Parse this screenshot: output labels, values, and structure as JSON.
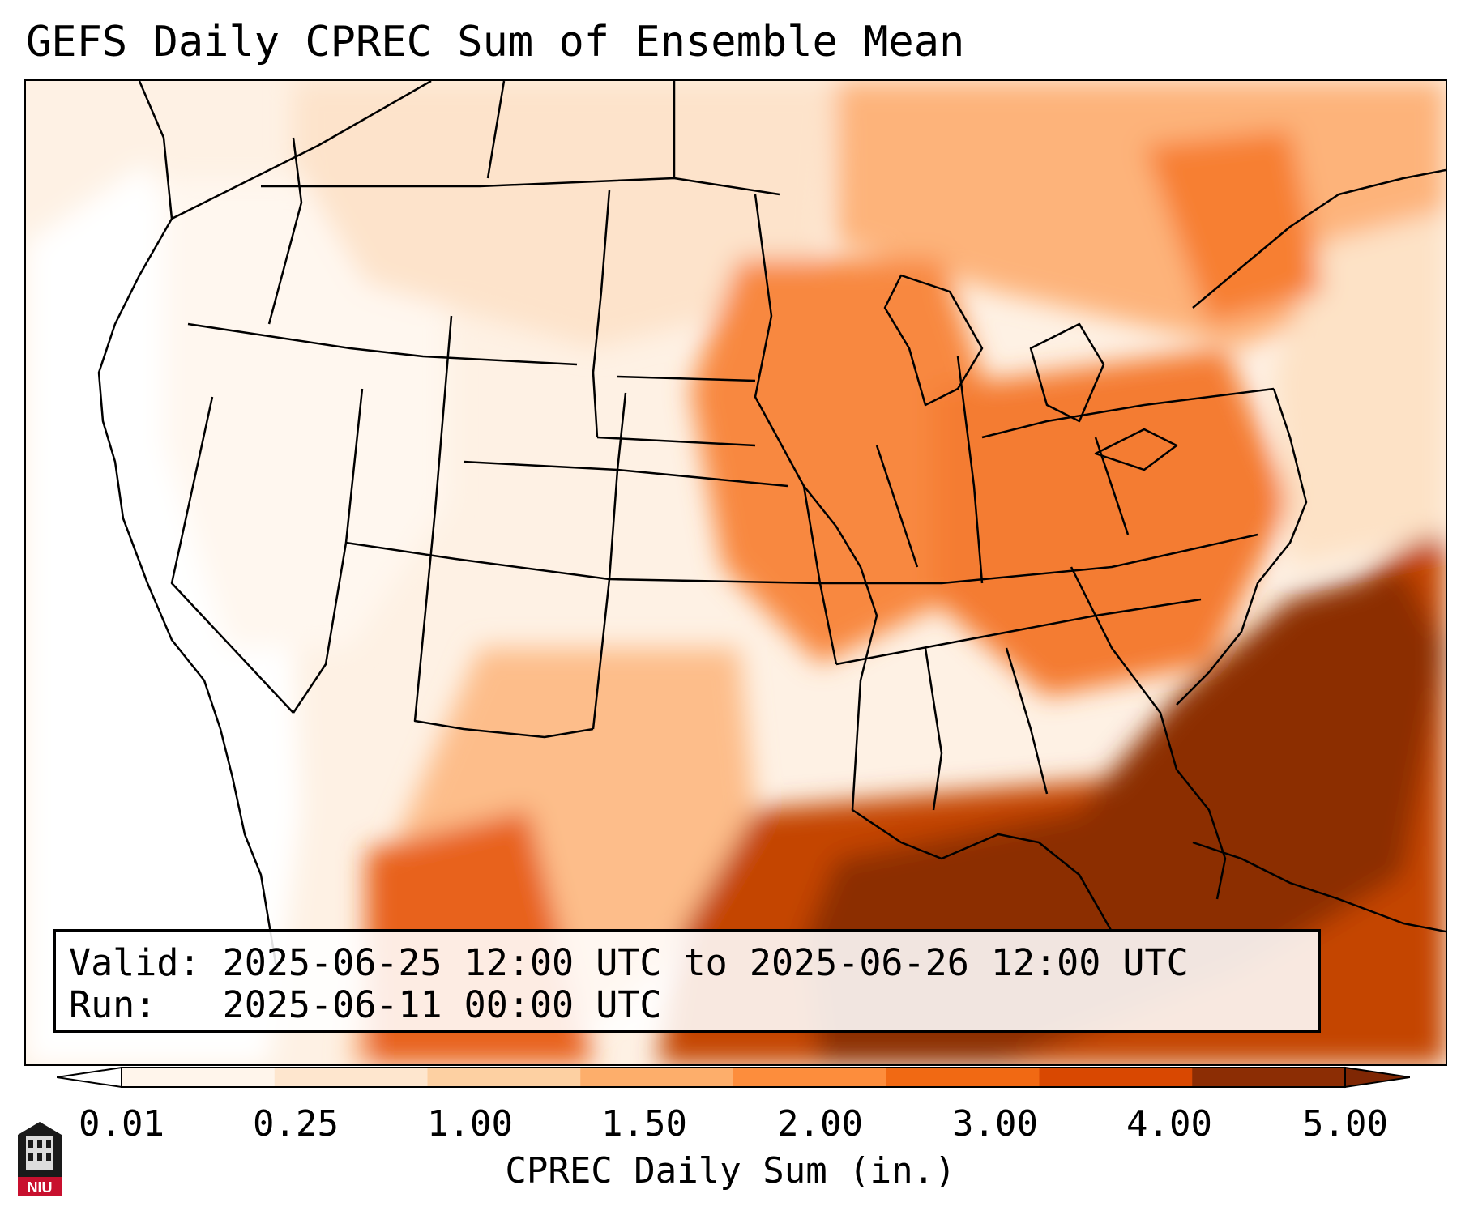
{
  "title": "GEFS Daily CPREC Sum of Ensemble Mean",
  "info": {
    "valid_label": "Valid: 2025-06-25 12:00 UTC to 2025-06-26 12:00 UTC",
    "run_label": "Run:   2025-06-11 00:00 UTC"
  },
  "colorbar": {
    "label": "CPREC Daily Sum (in.)",
    "ticks": [
      "0.01",
      "0.25",
      "1.00",
      "1.50",
      "2.00",
      "3.00",
      "4.00",
      "5.00"
    ],
    "colors": [
      "#fff5eb",
      "#fee6ce",
      "#fdd0a2",
      "#fdae6b",
      "#fd8d3c",
      "#f16913",
      "#d94801",
      "#8c2d04"
    ],
    "under_color": "#ffffff",
    "over_color": "#7f2704"
  },
  "logo": {
    "text": "NIU",
    "color": "#c8102e"
  },
  "map": {
    "region": "Contiguous United States",
    "variable": "CPREC daily sum",
    "units": "in.",
    "max_region": "Gulf of Mexico and Atlantic coast"
  }
}
